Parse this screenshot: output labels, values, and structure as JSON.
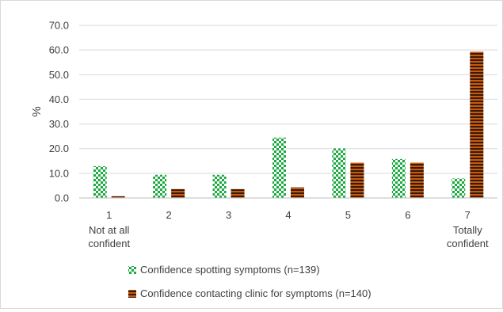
{
  "chart_data": {
    "type": "bar",
    "title": "",
    "xlabel": "",
    "ylabel": "%",
    "ylim": [
      0,
      70
    ],
    "yticks": [
      "0.0",
      "10.0",
      "20.0",
      "30.0",
      "40.0",
      "50.0",
      "60.0",
      "70.0"
    ],
    "grid": true,
    "legend_position": "bottom",
    "categories": [
      {
        "value": "1",
        "sublabel": [
          "Not at all",
          "confident"
        ]
      },
      {
        "value": "2",
        "sublabel": []
      },
      {
        "value": "3",
        "sublabel": []
      },
      {
        "value": "4",
        "sublabel": []
      },
      {
        "value": "5",
        "sublabel": []
      },
      {
        "value": "6",
        "sublabel": []
      },
      {
        "value": "7",
        "sublabel": [
          "Totally",
          "confident"
        ]
      }
    ],
    "series": [
      {
        "name": "Confidence spotting symptoms (n=139)",
        "values": [
          12.9,
          9.4,
          9.4,
          24.5,
          20.1,
          15.8,
          7.9
        ],
        "color": "#1aaa3f",
        "pattern": "checkerboard"
      },
      {
        "name": "Confidence contacting clinic for symptoms (n=140)",
        "values": [
          0.7,
          3.6,
          3.6,
          4.3,
          14.3,
          14.3,
          59.3
        ],
        "color": "#c55a11",
        "pattern": "horizontal-stripes"
      }
    ]
  }
}
